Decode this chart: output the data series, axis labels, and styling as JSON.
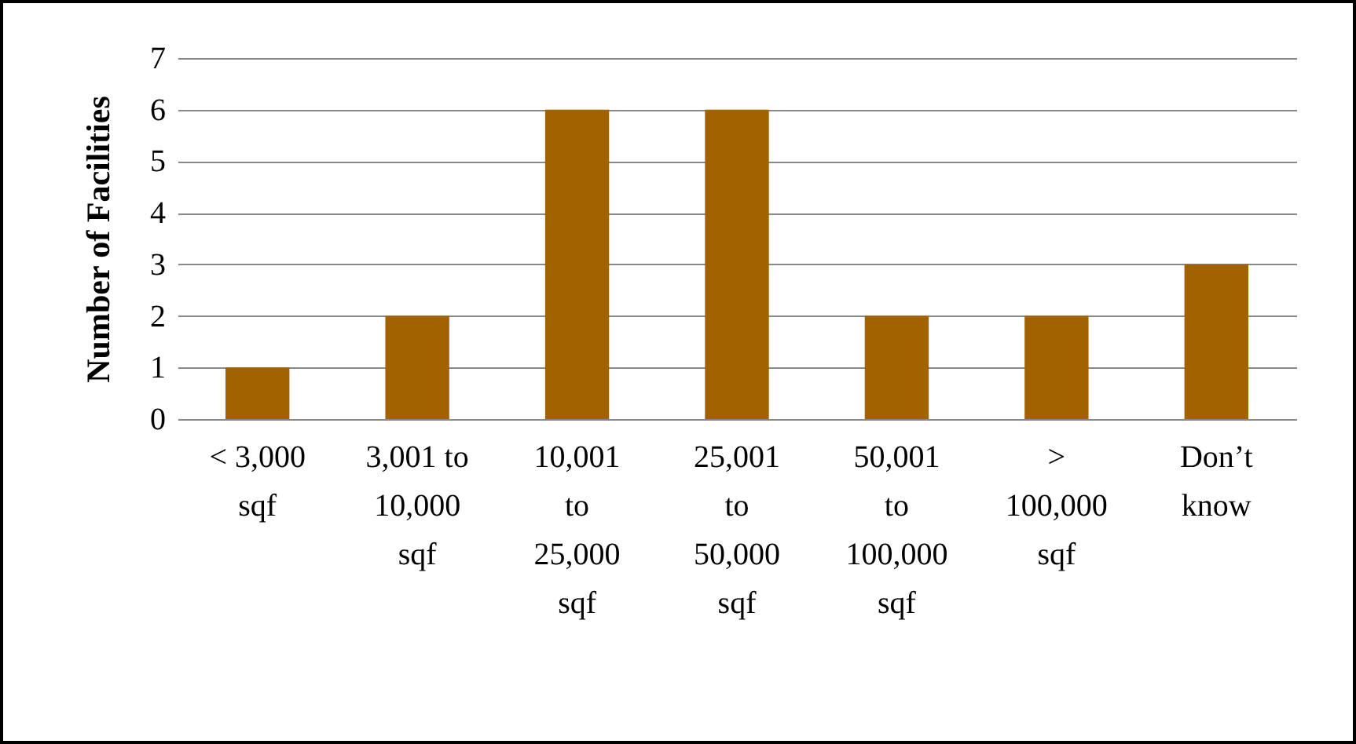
{
  "chart_data": {
    "type": "bar",
    "ylabel": "Number of Facilities",
    "categories": [
      "< 3,000 sqf",
      "3,001 to 10,000 sqf",
      "10,001 to 25,000 sqf",
      "25,001 to 50,000 sqf",
      "50,001 to 100,000 sqf",
      "> 100,000 sqf",
      "Don’t know"
    ],
    "values": [
      1,
      2,
      6,
      6,
      2,
      2,
      3
    ],
    "color": "#a36200",
    "ylim": [
      0,
      7
    ],
    "yticks": [
      0,
      1,
      2,
      3,
      4,
      5,
      6,
      7
    ],
    "grid": "y"
  }
}
